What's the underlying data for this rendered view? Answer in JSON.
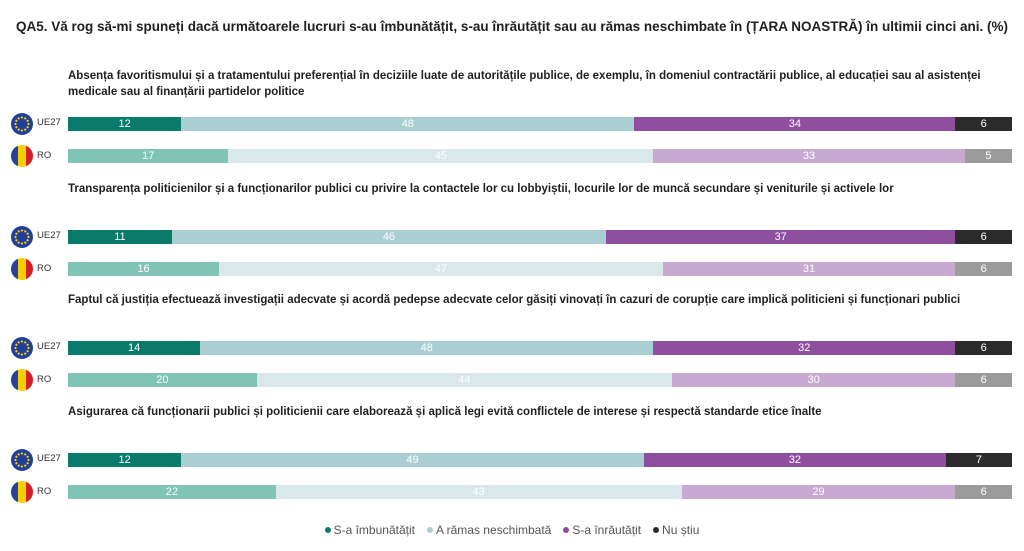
{
  "title": "QA5. Vă rog să-mi spuneți dacă următoarele lucruri s-au îmbunătățit, s-au înrăutățit sau au rămas neschimbate în (ȚARA NOASTRĂ) în ultimii cinci ani. (%)",
  "colors": {
    "eu": [
      "#0a7a6a",
      "#a9cfd3",
      "#8e4f9e",
      "#2b2b2b"
    ],
    "ro": [
      "#7fc4b4",
      "#dae8ec",
      "#c7a9d1",
      "#9b9b9b"
    ],
    "eu_text": [
      "#ffffff",
      "#ffffff",
      "#ffffff",
      "#ffffff"
    ],
    "ro_text": [
      "#ffffff",
      "#ffffff",
      "#ffffff",
      "#ffffff"
    ],
    "legend": [
      "#0a7a6a",
      "#a9cfd3",
      "#8e4f9e",
      "#2b2b2b"
    ]
  },
  "chart_data": {
    "type": "bar",
    "orientation": "horizontal",
    "stacked": true,
    "unit": "%",
    "categories": [
      "S-a îmbunătățit",
      "A rămas neschimbată",
      "S-a înrăutățit",
      "Nu știu"
    ],
    "groups": [
      {
        "question": "Absența favoritismului și a tratamentului preferențial în deciziile luate de autoritățile publice, de exemplu, în domeniul contractării publice, al educației sau al asistenței medicale sau al finanțării partidelor politice",
        "rows": [
          {
            "label": "UE27",
            "values": [
              12,
              48,
              34,
              6
            ]
          },
          {
            "label": "RO",
            "values": [
              17,
              45,
              33,
              5
            ]
          }
        ]
      },
      {
        "question": "Transparența politicienilor și a funcționarilor publici cu privire la contactele lor cu lobbyiștii, locurile lor de muncă secundare și veniturile și activele lor",
        "rows": [
          {
            "label": "UE27",
            "values": [
              11,
              46,
              37,
              6
            ]
          },
          {
            "label": "RO",
            "values": [
              16,
              47,
              31,
              6
            ]
          }
        ]
      },
      {
        "question": "Faptul că justiția efectuează investigații adecvate și acordă pedepse adecvate celor găsiți vinovați în cazuri de corupție care implică politicieni și funcționari publici",
        "rows": [
          {
            "label": "UE27",
            "values": [
              14,
              48,
              32,
              6
            ]
          },
          {
            "label": "RO",
            "values": [
              20,
              44,
              30,
              6
            ]
          }
        ]
      },
      {
        "question": "Asigurarea că funcționarii publici și politicienii care elaborează și aplică legi evită conflictele de interese și respectă standarde etice înalte",
        "rows": [
          {
            "label": "UE27",
            "values": [
              12,
              49,
              32,
              7
            ]
          },
          {
            "label": "RO",
            "values": [
              22,
              43,
              29,
              6
            ]
          }
        ]
      }
    ]
  }
}
